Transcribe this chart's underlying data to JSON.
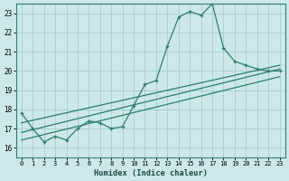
{
  "xlabel": "Humidex (Indice chaleur)",
  "background_color": "#cce8e8",
  "grid_color": "#aacccc",
  "line_color": "#2e7d6e",
  "xlim": [
    -0.5,
    23.5
  ],
  "ylim": [
    15.5,
    23.5
  ],
  "yticks": [
    16,
    17,
    18,
    19,
    20,
    21,
    22,
    23
  ],
  "xticks": [
    0,
    1,
    2,
    3,
    4,
    5,
    6,
    7,
    8,
    9,
    10,
    11,
    12,
    13,
    14,
    15,
    16,
    17,
    18,
    19,
    20,
    21,
    22,
    23
  ],
  "line1_x": [
    0,
    1,
    2,
    3,
    4,
    5,
    6,
    7,
    8,
    9,
    10,
    11,
    12,
    13,
    14,
    15,
    16,
    17,
    18,
    19,
    20,
    21,
    22,
    23
  ],
  "line1_y": [
    17.8,
    17.0,
    16.3,
    16.6,
    16.4,
    17.0,
    17.4,
    17.3,
    17.0,
    17.1,
    18.2,
    19.3,
    19.5,
    21.3,
    22.8,
    23.1,
    22.9,
    23.5,
    21.2,
    20.5,
    20.3,
    20.1,
    20.0,
    20.0
  ],
  "line2_x": [
    0,
    23
  ],
  "line2_y": [
    16.8,
    20.1
  ],
  "line3_x": [
    0,
    23
  ],
  "line3_y": [
    16.4,
    19.7
  ],
  "line4_x": [
    0,
    23
  ],
  "line4_y": [
    17.3,
    20.3
  ]
}
